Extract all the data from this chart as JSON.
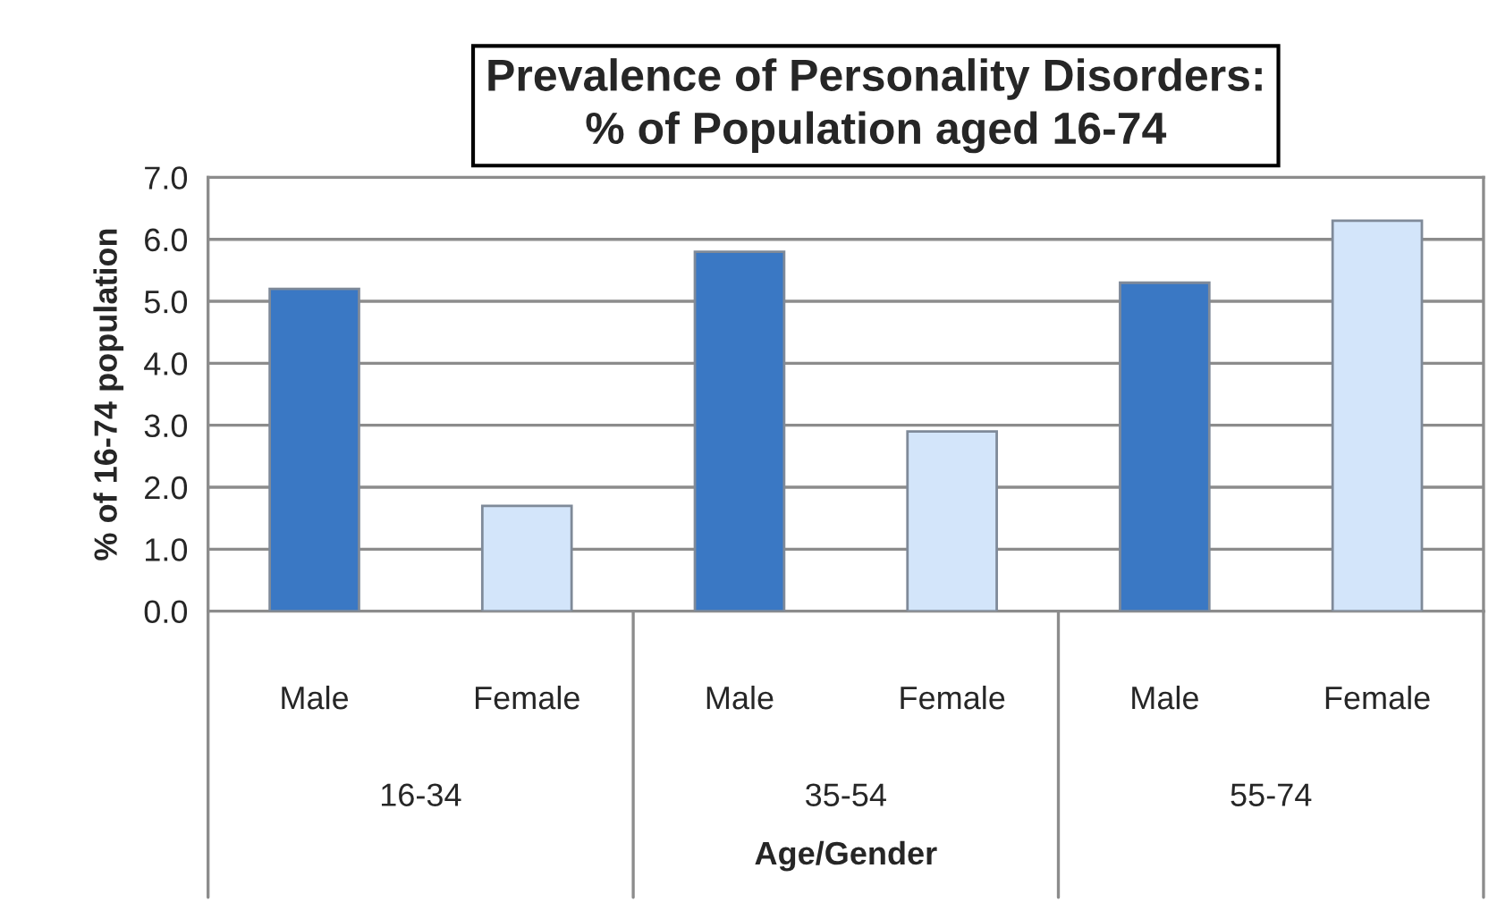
{
  "chart_data": {
    "type": "bar",
    "title": "Prevalence of Personality Disorders:\n% of Population aged 16-74",
    "xlabel": "Age/Gender",
    "ylabel": "% of 16-74 population",
    "categories": [
      "Male",
      "Female",
      "Male",
      "Female",
      "Male",
      "Female"
    ],
    "values": [
      5.2,
      1.7,
      5.8,
      2.9,
      5.3,
      6.3
    ],
    "colors": [
      "#3a78c4",
      "#d3e5fa",
      "#3a78c4",
      "#d3e5fa",
      "#3a78c4",
      "#d3e5fa"
    ],
    "annotations": [
      "16-34",
      "35-54",
      "55-74"
    ],
    "ylim": [
      0,
      7
    ],
    "yticks": [
      {
        "value": 0,
        "label": "0.0"
      },
      {
        "value": 1,
        "label": "1.0"
      },
      {
        "value": 2,
        "label": "2.0"
      },
      {
        "value": 3,
        "label": "3.0"
      },
      {
        "value": 4,
        "label": "4.0"
      },
      {
        "value": 5,
        "label": "5.0"
      },
      {
        "value": 6,
        "label": "6.0"
      },
      {
        "value": 7,
        "label": "7.0"
      }
    ],
    "grid": "y",
    "legend": false
  }
}
